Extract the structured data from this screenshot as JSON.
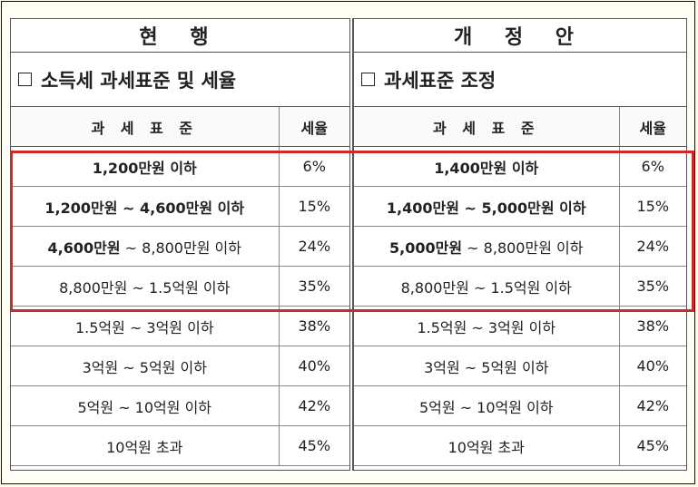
{
  "current": {
    "title": "현 행",
    "subtitle": "소득세 과세표준 및 세율",
    "header_base": "과 세 표 준",
    "header_rate": "세율",
    "rows": [
      {
        "base_bold": "1,200만원 이하",
        "base_rest": "",
        "rate": "6%"
      },
      {
        "base_bold": "1,200만원 ~ 4,600만원 이하",
        "base_rest": "",
        "rate": "15%"
      },
      {
        "base_bold": "4,600만원",
        "base_rest": " ~ 8,800만원 이하",
        "rate": "24%"
      },
      {
        "base_bold": "",
        "base_rest": "8,800만원 ~ 1.5억원 이하",
        "rate": "35%"
      },
      {
        "base_bold": "",
        "base_rest": "1.5억원 ~ 3억원 이하",
        "rate": "38%"
      },
      {
        "base_bold": "",
        "base_rest": "3억원 ~ 5억원 이하",
        "rate": "40%"
      },
      {
        "base_bold": "",
        "base_rest": "5억원 ~ 10억원 이하",
        "rate": "42%"
      },
      {
        "base_bold": "",
        "base_rest": "10억원 초과",
        "rate": "45%"
      }
    ]
  },
  "proposed": {
    "title": "개 정 안",
    "subtitle": "과세표준 조정",
    "header_base": "과 세 표 준",
    "header_rate": "세율",
    "rows": [
      {
        "base_bold": "1,400만원 이하",
        "base_rest": "",
        "rate": "6%"
      },
      {
        "base_bold": "1,400만원 ~ 5,000만원 이하",
        "base_rest": "",
        "rate": "15%"
      },
      {
        "base_bold": "5,000만원",
        "base_rest": " ~ 8,800만원 이하",
        "rate": "24%"
      },
      {
        "base_bold": "",
        "base_rest": "8,800만원 ~ 1.5억원 이하",
        "rate": "35%"
      },
      {
        "base_bold": "",
        "base_rest": "1.5억원 ~ 3억원 이하",
        "rate": "38%"
      },
      {
        "base_bold": "",
        "base_rest": "3억원 ~ 5억원 이하",
        "rate": "40%"
      },
      {
        "base_bold": "",
        "base_rest": "5억원 ~ 10억원 이하",
        "rate": "42%"
      },
      {
        "base_bold": "",
        "base_rest": "10억원 초과",
        "rate": "45%"
      }
    ]
  },
  "highlight_color": "#cc2b2b"
}
